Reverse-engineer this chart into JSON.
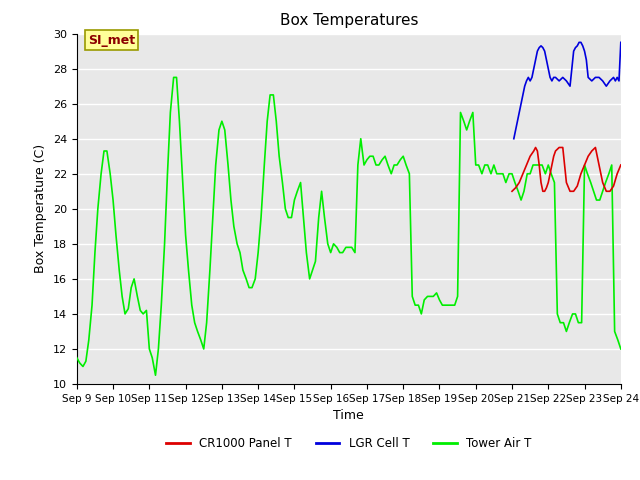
{
  "title": "Box Temperatures",
  "xlabel": "Time",
  "ylabel": "Box Temperature (C)",
  "ylim": [
    10,
    30
  ],
  "annotation": "SI_met",
  "bg_color": "#e8e8e8",
  "fig_bg": "#ffffff",
  "grid_color": "#ffffff",
  "legend": [
    {
      "label": "CR1000 Panel T",
      "color": "#dd0000"
    },
    {
      "label": "LGR Cell T",
      "color": "#0000dd"
    },
    {
      "label": "Tower Air T",
      "color": "#00ee00"
    }
  ],
  "xtick_labels": [
    "Sep 9",
    "Sep 10",
    "Sep 11",
    "Sep 12",
    "Sep 13",
    "Sep 14",
    "Sep 15",
    "Sep 16",
    "Sep 17",
    "Sep 18",
    "Sep 19",
    "Sep 20",
    "Sep 21",
    "Sep 22",
    "Sep 23",
    "Sep 24"
  ],
  "tower_air_t_x": [
    0,
    0.08,
    0.17,
    0.25,
    0.33,
    0.42,
    0.5,
    0.58,
    0.67,
    0.75,
    0.83,
    0.92,
    1.0,
    1.08,
    1.17,
    1.25,
    1.33,
    1.42,
    1.5,
    1.58,
    1.67,
    1.75,
    1.83,
    1.92,
    2.0,
    2.08,
    2.17,
    2.25,
    2.33,
    2.42,
    2.5,
    2.58,
    2.67,
    2.75,
    2.83,
    2.92,
    3.0,
    3.08,
    3.17,
    3.25,
    3.33,
    3.42,
    3.5,
    3.58,
    3.67,
    3.75,
    3.83,
    3.92,
    4.0,
    4.08,
    4.17,
    4.25,
    4.33,
    4.42,
    4.5,
    4.58,
    4.67,
    4.75,
    4.83,
    4.92,
    5.0,
    5.08,
    5.17,
    5.25,
    5.33,
    5.42,
    5.5,
    5.58,
    5.67,
    5.75,
    5.83,
    5.92,
    6.0,
    6.08,
    6.17,
    6.25,
    6.33,
    6.42,
    6.5,
    6.58,
    6.67,
    6.75,
    6.83,
    6.92,
    7.0,
    7.08,
    7.17,
    7.25,
    7.33,
    7.42,
    7.5,
    7.58,
    7.67,
    7.75,
    7.83,
    7.92,
    8.0,
    8.08,
    8.17,
    8.25,
    8.33,
    8.42,
    8.5,
    8.58,
    8.67,
    8.75,
    8.83,
    8.92,
    9.0,
    9.08,
    9.17,
    9.25,
    9.33,
    9.42,
    9.5,
    9.58,
    9.67,
    9.75,
    9.83,
    9.92,
    10.0,
    10.08,
    10.17,
    10.25,
    10.33,
    10.42,
    10.5,
    10.58,
    10.67,
    10.75,
    10.83,
    10.92,
    11.0,
    11.08,
    11.17,
    11.25,
    11.33,
    11.42,
    11.5,
    11.58,
    11.67,
    11.75,
    11.83,
    11.92,
    12.0,
    12.08,
    12.17,
    12.25,
    12.33,
    12.42,
    12.5,
    12.58,
    12.67,
    12.75,
    12.83,
    12.92,
    13.0,
    13.08,
    13.17,
    13.25,
    13.33,
    13.42,
    13.5,
    13.58,
    13.67,
    13.75,
    13.83,
    13.92,
    14.0,
    14.08,
    14.17,
    14.25,
    14.33,
    14.42,
    14.5,
    14.58,
    14.67,
    14.75,
    14.83,
    14.92,
    15.0
  ],
  "tower_air_t_y": [
    11.5,
    11.2,
    11.0,
    11.3,
    12.5,
    14.5,
    17.5,
    20.0,
    22.0,
    23.3,
    23.3,
    22.0,
    20.5,
    18.5,
    16.5,
    15.0,
    14.0,
    14.3,
    15.5,
    16.0,
    15.0,
    14.2,
    14.0,
    14.2,
    12.0,
    11.5,
    10.5,
    12.0,
    14.5,
    18.0,
    22.0,
    25.5,
    27.5,
    27.5,
    25.0,
    21.5,
    18.5,
    16.5,
    14.5,
    13.5,
    13.0,
    12.5,
    12.0,
    13.5,
    16.5,
    19.5,
    22.5,
    24.5,
    25.0,
    24.5,
    22.5,
    20.5,
    19.0,
    18.0,
    17.5,
    16.5,
    16.0,
    15.5,
    15.5,
    16.0,
    17.5,
    19.5,
    22.5,
    25.0,
    26.5,
    26.5,
    25.0,
    23.0,
    21.5,
    20.0,
    19.5,
    19.5,
    20.5,
    21.0,
    21.5,
    19.5,
    17.5,
    16.0,
    16.5,
    17.0,
    19.5,
    21.0,
    19.5,
    18.0,
    17.5,
    18.0,
    17.8,
    17.5,
    17.5,
    17.8,
    17.8,
    17.8,
    17.5,
    22.5,
    24.0,
    22.5,
    22.8,
    23.0,
    23.0,
    22.5,
    22.5,
    22.8,
    23.0,
    22.5,
    22.0,
    22.5,
    22.5,
    22.8,
    23.0,
    22.5,
    22.0,
    15.0,
    14.5,
    14.5,
    14.0,
    14.8,
    15.0,
    15.0,
    15.0,
    15.2,
    14.8,
    14.5,
    14.5,
    14.5,
    14.5,
    14.5,
    15.0,
    25.5,
    25.0,
    24.5,
    25.0,
    25.5,
    22.5,
    22.5,
    22.0,
    22.5,
    22.5,
    22.0,
    22.5,
    22.0,
    22.0,
    22.0,
    21.5,
    22.0,
    22.0,
    21.5,
    21.0,
    20.5,
    21.0,
    22.0,
    22.0,
    22.5,
    22.5,
    22.5,
    22.5,
    22.0,
    22.5,
    22.0,
    21.5,
    14.0,
    13.5,
    13.5,
    13.0,
    13.5,
    14.0,
    14.0,
    13.5,
    13.5,
    22.5,
    22.0,
    21.5,
    21.0,
    20.5,
    20.5,
    21.0,
    21.5,
    22.0,
    22.5,
    13.0,
    12.5,
    12.0
  ],
  "cr1000_panel_t_x": [
    12.0,
    12.1,
    12.2,
    12.3,
    12.4,
    12.5,
    12.6,
    12.65,
    12.7,
    12.75,
    12.8,
    12.85,
    12.9,
    12.95,
    13.0,
    13.05,
    13.1,
    13.15,
    13.2,
    13.3,
    13.4,
    13.5,
    13.6,
    13.7,
    13.8,
    13.9,
    14.0,
    14.1,
    14.2,
    14.3,
    14.4,
    14.5,
    14.6,
    14.7,
    14.8,
    14.9,
    15.0
  ],
  "cr1000_panel_t_y": [
    21.0,
    21.2,
    21.5,
    22.0,
    22.5,
    23.0,
    23.3,
    23.5,
    23.3,
    22.5,
    21.5,
    21.0,
    21.0,
    21.2,
    21.5,
    22.0,
    22.5,
    23.0,
    23.3,
    23.5,
    23.5,
    21.5,
    21.0,
    21.0,
    21.3,
    22.0,
    22.5,
    23.0,
    23.3,
    23.5,
    22.5,
    21.5,
    21.0,
    21.0,
    21.3,
    22.0,
    22.5
  ],
  "lgr_cell_t_x": [
    12.05,
    12.1,
    12.15,
    12.2,
    12.25,
    12.3,
    12.35,
    12.4,
    12.45,
    12.5,
    12.55,
    12.6,
    12.65,
    12.7,
    12.75,
    12.8,
    12.85,
    12.9,
    12.95,
    13.0,
    13.05,
    13.1,
    13.15,
    13.2,
    13.3,
    13.4,
    13.5,
    13.6,
    13.7,
    13.75,
    13.8,
    13.85,
    13.9,
    13.95,
    14.0,
    14.05,
    14.1,
    14.2,
    14.3,
    14.4,
    14.5,
    14.6,
    14.7,
    14.8,
    14.85,
    14.9,
    14.95,
    15.0
  ],
  "lgr_cell_t_y": [
    24.0,
    24.5,
    25.0,
    25.5,
    26.0,
    26.5,
    27.0,
    27.3,
    27.5,
    27.3,
    27.5,
    28.0,
    28.5,
    29.0,
    29.2,
    29.3,
    29.2,
    29.0,
    28.5,
    28.0,
    27.5,
    27.3,
    27.5,
    27.5,
    27.3,
    27.5,
    27.3,
    27.0,
    29.0,
    29.2,
    29.3,
    29.5,
    29.5,
    29.3,
    29.0,
    28.5,
    27.5,
    27.3,
    27.5,
    27.5,
    27.3,
    27.0,
    27.3,
    27.5,
    27.3,
    27.5,
    27.3,
    29.5
  ]
}
